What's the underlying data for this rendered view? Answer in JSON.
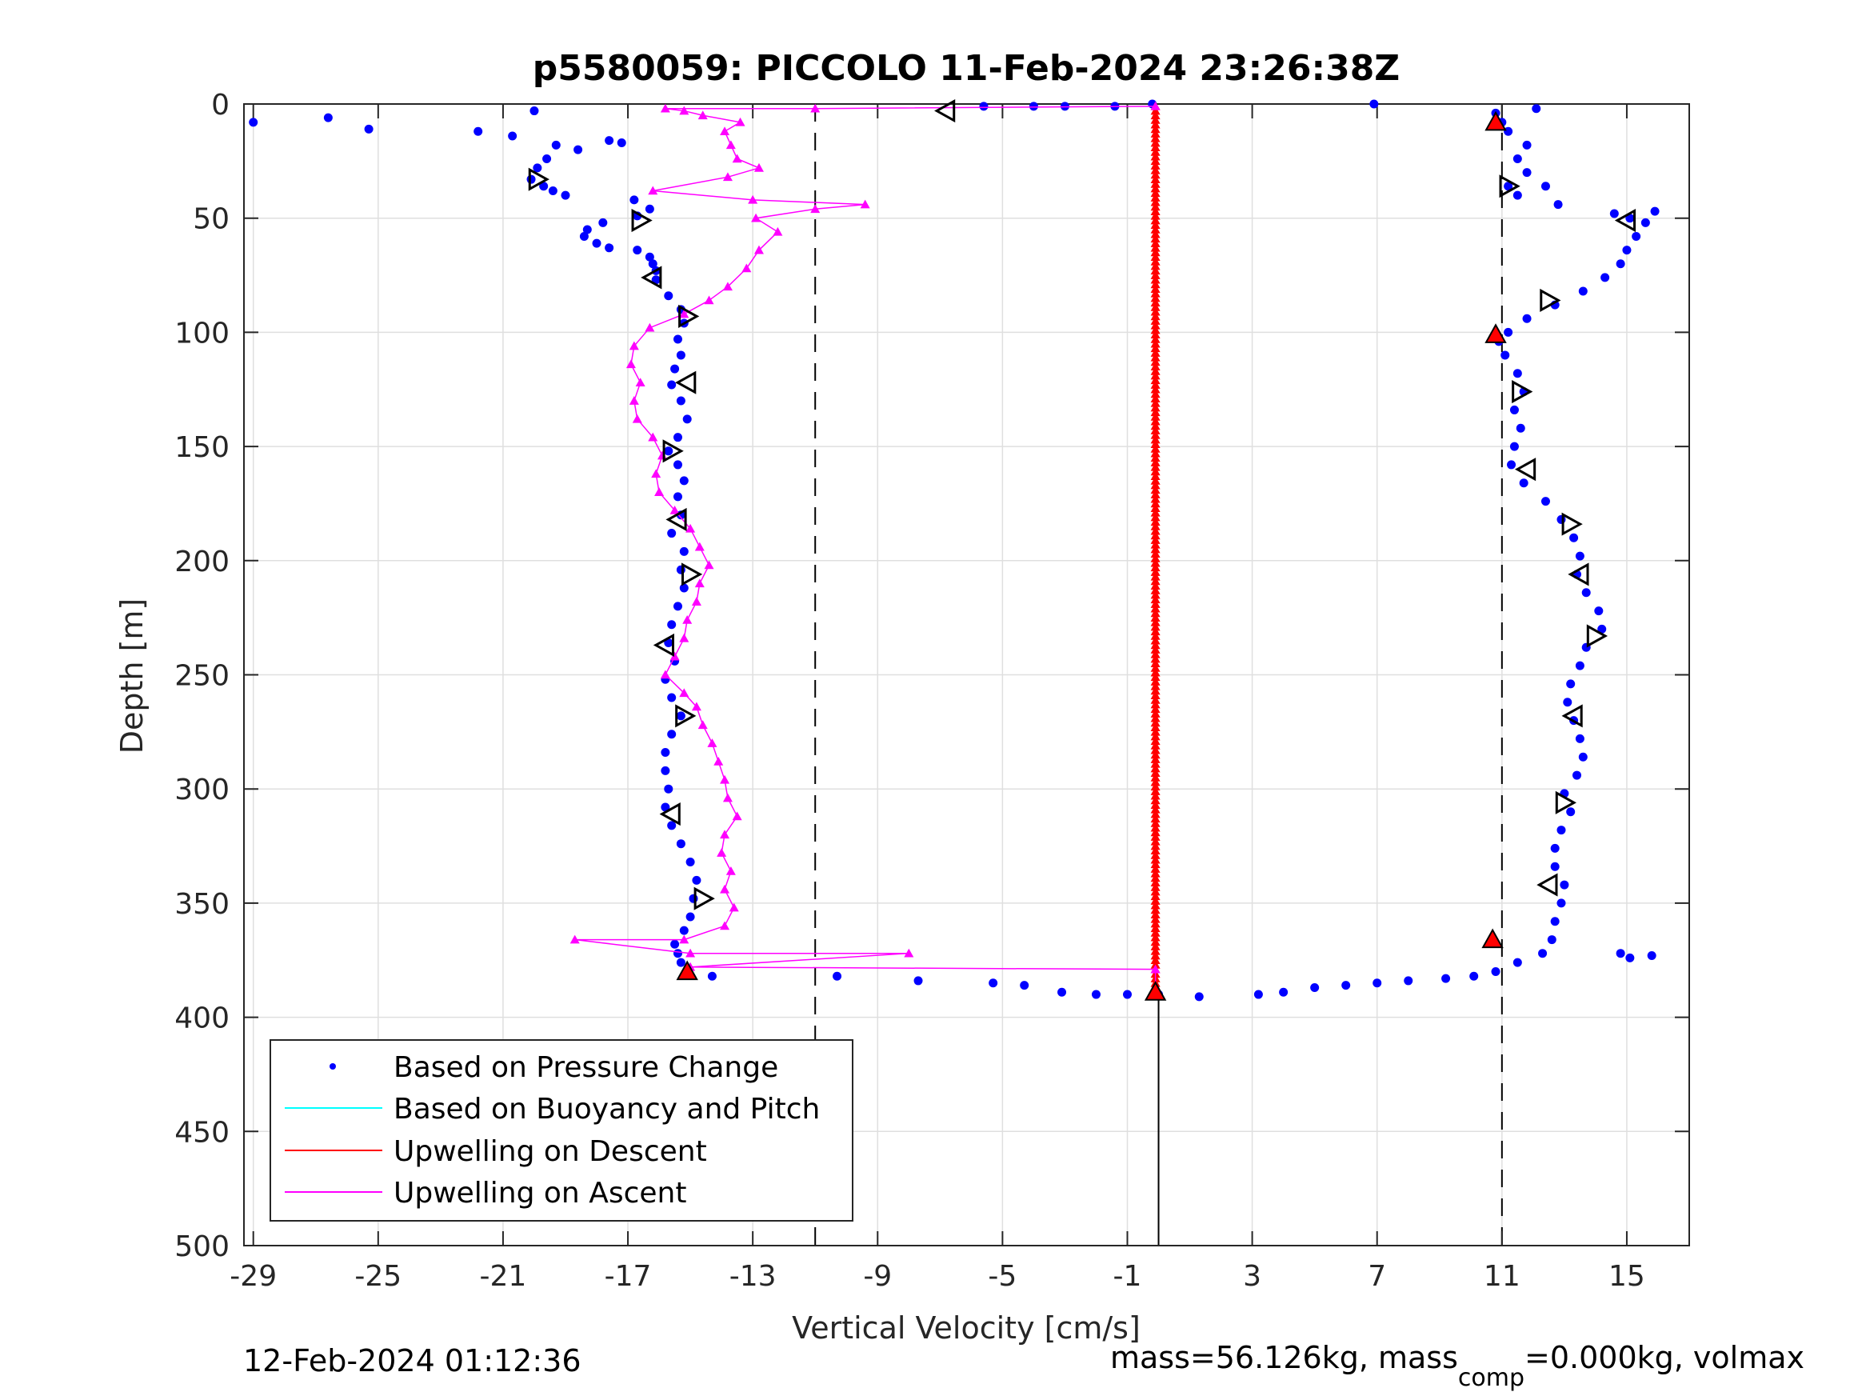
{
  "chart_data": {
    "type": "scatter",
    "title": "p5580059: PICCOLO 11-Feb-2024 23:26:38Z",
    "xlabel": "Vertical Velocity [cm/s]",
    "ylabel": "Depth [m]",
    "xlim": [
      -29.3,
      17
    ],
    "ylim": [
      0,
      500
    ],
    "y_reversed": true,
    "grid": true,
    "xticks": [
      -29,
      -25,
      -21,
      -17,
      -13,
      -9,
      -5,
      -1,
      3,
      7,
      11,
      15
    ],
    "yticks": [
      0,
      50,
      100,
      150,
      200,
      250,
      300,
      350,
      400,
      450,
      500
    ],
    "reference_lines": [
      {
        "name": "dashed-left",
        "x": -11,
        "style": "dashed"
      },
      {
        "name": "dashed-right",
        "x": 11,
        "style": "dashed"
      },
      {
        "name": "zero-line",
        "x": 0,
        "style": "solid",
        "y_from": 390,
        "y_to": 500
      }
    ],
    "legend": {
      "position": "bottom-left",
      "entries": [
        {
          "label": "Based on Pressure Change",
          "color": "#0000ff",
          "marker": "dot"
        },
        {
          "label": "Based on Buoyancy and Pitch",
          "color": "#00ffff",
          "marker": "line"
        },
        {
          "label": "Upwelling on Descent",
          "color": "#ff0000",
          "marker": "line"
        },
        {
          "label": "Upwelling on Ascent",
          "color": "#ff00ff",
          "marker": "line"
        }
      ]
    },
    "series": [
      {
        "name": "Based on Pressure Change (descent)",
        "color": "#0000ff",
        "marker": "dot",
        "points": [
          [
            -29,
            8
          ],
          [
            -26.6,
            6
          ],
          [
            -25.3,
            11
          ],
          [
            -21.8,
            12
          ],
          [
            -20.7,
            14
          ],
          [
            -20,
            3
          ],
          [
            -19.3,
            18
          ],
          [
            -18.6,
            20
          ],
          [
            -17.6,
            16
          ],
          [
            -17.2,
            17
          ],
          [
            -19.6,
            24
          ],
          [
            -19.9,
            28
          ],
          [
            -20.1,
            33
          ],
          [
            -19.7,
            36
          ],
          [
            -19.4,
            38
          ],
          [
            -19,
            40
          ],
          [
            -16.8,
            42
          ],
          [
            -16.3,
            46
          ],
          [
            -16.7,
            49
          ],
          [
            -17.8,
            52
          ],
          [
            -18.3,
            55
          ],
          [
            -18.4,
            58
          ],
          [
            -18,
            61
          ],
          [
            -17.6,
            63
          ],
          [
            -16.7,
            64
          ],
          [
            -16.3,
            67
          ],
          [
            -16.2,
            70
          ],
          [
            -16.1,
            73
          ],
          [
            -16.1,
            77
          ],
          [
            -15.7,
            84
          ],
          [
            -15.3,
            90
          ],
          [
            -15.2,
            96
          ],
          [
            -15.4,
            103
          ],
          [
            -15.3,
            110
          ],
          [
            -15.5,
            116
          ],
          [
            -15.6,
            123
          ],
          [
            -15.3,
            130
          ],
          [
            -15.1,
            138
          ],
          [
            -15.4,
            146
          ],
          [
            -15.7,
            152
          ],
          [
            -15.4,
            158
          ],
          [
            -15.2,
            165
          ],
          [
            -15.4,
            172
          ],
          [
            -15.3,
            180
          ],
          [
            -15.6,
            188
          ],
          [
            -15.2,
            196
          ],
          [
            -15.3,
            204
          ],
          [
            -15.2,
            212
          ],
          [
            -15.4,
            220
          ],
          [
            -15.6,
            228
          ],
          [
            -15.7,
            236
          ],
          [
            -15.5,
            244
          ],
          [
            -15.8,
            252
          ],
          [
            -15.6,
            260
          ],
          [
            -15.3,
            268
          ],
          [
            -15.6,
            276
          ],
          [
            -15.8,
            284
          ],
          [
            -15.8,
            292
          ],
          [
            -15.7,
            300
          ],
          [
            -15.8,
            308
          ],
          [
            -15.6,
            316
          ],
          [
            -15.3,
            324
          ],
          [
            -15,
            332
          ],
          [
            -14.8,
            340
          ],
          [
            -14.9,
            348
          ],
          [
            -15,
            356
          ],
          [
            -15.2,
            362
          ],
          [
            -15.5,
            368
          ],
          [
            -15.4,
            372
          ],
          [
            -15.3,
            376
          ],
          [
            -15.1,
            380
          ],
          [
            -14.3,
            382
          ],
          [
            -10.3,
            382
          ],
          [
            -7.7,
            384
          ],
          [
            -5.3,
            385
          ],
          [
            -4.3,
            386
          ],
          [
            -3.1,
            389
          ],
          [
            -2,
            390
          ],
          [
            -1,
            390
          ],
          [
            0,
            390
          ],
          [
            1.3,
            391
          ]
        ]
      },
      {
        "name": "Based on Pressure Change (ascent)",
        "color": "#0000ff",
        "marker": "dot",
        "points": [
          [
            3.2,
            390
          ],
          [
            4,
            389
          ],
          [
            5,
            387
          ],
          [
            6,
            386
          ],
          [
            7,
            385
          ],
          [
            8,
            384
          ],
          [
            9.2,
            383
          ],
          [
            10.1,
            382
          ],
          [
            10.8,
            380
          ],
          [
            11.5,
            376
          ],
          [
            12.3,
            372
          ],
          [
            12.6,
            366
          ],
          [
            12.7,
            358
          ],
          [
            12.9,
            350
          ],
          [
            13,
            342
          ],
          [
            12.7,
            334
          ],
          [
            12.7,
            326
          ],
          [
            12.9,
            318
          ],
          [
            13.2,
            310
          ],
          [
            13,
            302
          ],
          [
            13.4,
            294
          ],
          [
            13.6,
            286
          ],
          [
            13.5,
            278
          ],
          [
            13.3,
            270
          ],
          [
            13.1,
            262
          ],
          [
            13.2,
            254
          ],
          [
            13.5,
            246
          ],
          [
            13.7,
            238
          ],
          [
            14.2,
            230
          ],
          [
            14.1,
            222
          ],
          [
            13.7,
            214
          ],
          [
            13.4,
            206
          ],
          [
            13.5,
            198
          ],
          [
            13.3,
            190
          ],
          [
            12.9,
            182
          ],
          [
            12.4,
            174
          ],
          [
            11.7,
            166
          ],
          [
            11.3,
            158
          ],
          [
            11.4,
            150
          ],
          [
            11.6,
            142
          ],
          [
            11.4,
            134
          ],
          [
            11.7,
            126
          ],
          [
            11.5,
            118
          ],
          [
            11.1,
            110
          ],
          [
            10.9,
            104
          ],
          [
            11.2,
            100
          ],
          [
            11.8,
            94
          ],
          [
            12.7,
            88
          ],
          [
            13.6,
            82
          ],
          [
            14.3,
            76
          ],
          [
            14.8,
            70
          ],
          [
            15,
            64
          ],
          [
            15.3,
            58
          ],
          [
            15.6,
            52
          ],
          [
            15.9,
            47
          ],
          [
            15.1,
            50
          ],
          [
            14.6,
            48
          ],
          [
            12.8,
            44
          ],
          [
            11.5,
            40
          ],
          [
            12.4,
            36
          ],
          [
            11.2,
            36
          ],
          [
            11.8,
            30
          ],
          [
            11.5,
            24
          ],
          [
            11.8,
            18
          ],
          [
            11.2,
            12
          ],
          [
            11,
            8
          ],
          [
            10.8,
            4
          ],
          [
            12.1,
            2
          ],
          [
            6.9,
            0
          ],
          [
            -0.2,
            0
          ],
          [
            -1.4,
            1
          ],
          [
            -3,
            1
          ],
          [
            -4,
            1
          ],
          [
            -5.6,
            1
          ],
          [
            15.8,
            373
          ],
          [
            15.1,
            374
          ],
          [
            14.8,
            372
          ]
        ]
      },
      {
        "name": "Upwelling on Descent",
        "color": "#ff0000",
        "marker": "triangle-line",
        "x_constant": -0.1,
        "y_range": [
          1,
          390
        ]
      },
      {
        "name": "Upwelling on Ascent",
        "color": "#ff00ff",
        "marker": "triangle-line",
        "points": [
          [
            -0.1,
            390
          ],
          [
            -0.1,
            379
          ],
          [
            -15,
            378
          ],
          [
            -8,
            372
          ],
          [
            -15,
            372
          ],
          [
            -18.7,
            366
          ],
          [
            -15.2,
            366
          ],
          [
            -13.9,
            360
          ],
          [
            -13.6,
            352
          ],
          [
            -13.9,
            344
          ],
          [
            -13.7,
            336
          ],
          [
            -14,
            328
          ],
          [
            -13.9,
            320
          ],
          [
            -13.5,
            312
          ],
          [
            -13.8,
            304
          ],
          [
            -13.9,
            296
          ],
          [
            -14.1,
            288
          ],
          [
            -14.3,
            280
          ],
          [
            -14.6,
            272
          ],
          [
            -14.8,
            264
          ],
          [
            -15.2,
            258
          ],
          [
            -15.8,
            250
          ],
          [
            -15.5,
            242
          ],
          [
            -15.2,
            234
          ],
          [
            -15.1,
            226
          ],
          [
            -14.8,
            218
          ],
          [
            -14.7,
            210
          ],
          [
            -14.4,
            202
          ],
          [
            -14.7,
            194
          ],
          [
            -15,
            186
          ],
          [
            -15.5,
            178
          ],
          [
            -16,
            170
          ],
          [
            -16.1,
            162
          ],
          [
            -15.9,
            154
          ],
          [
            -16.2,
            146
          ],
          [
            -16.7,
            138
          ],
          [
            -16.8,
            130
          ],
          [
            -16.6,
            122
          ],
          [
            -16.9,
            114
          ],
          [
            -16.8,
            106
          ],
          [
            -16.3,
            98
          ],
          [
            -15.2,
            92
          ],
          [
            -14.4,
            86
          ],
          [
            -13.8,
            80
          ],
          [
            -13.2,
            72
          ],
          [
            -12.8,
            64
          ],
          [
            -12.2,
            56
          ],
          [
            -12.9,
            50
          ],
          [
            -11,
            46
          ],
          [
            -9.4,
            44
          ],
          [
            -13,
            42
          ],
          [
            -16.2,
            38
          ],
          [
            -13.8,
            32
          ],
          [
            -12.8,
            28
          ],
          [
            -13.5,
            24
          ],
          [
            -13.7,
            18
          ],
          [
            -13.9,
            12
          ],
          [
            -13.4,
            8
          ],
          [
            -14.6,
            5
          ],
          [
            -15.2,
            3
          ],
          [
            -15.8,
            2
          ],
          [
            -11,
            2
          ],
          [
            -0.1,
            1
          ]
        ]
      },
      {
        "name": "Start markers",
        "color": "#ff0000",
        "marker": "red-triangle",
        "points": [
          [
            10.8,
            8
          ],
          [
            10.8,
            101
          ],
          [
            10.7,
            366
          ],
          [
            -15.1,
            380
          ],
          [
            -0.1,
            389
          ]
        ]
      },
      {
        "name": "Direction markers",
        "color": "#000000",
        "marker": "open-triangle",
        "points": [
          [
            -6.8,
            3,
            "left"
          ],
          [
            -19.9,
            33,
            "right"
          ],
          [
            -16.6,
            51,
            "right"
          ],
          [
            -16.2,
            76,
            "left"
          ],
          [
            -15.1,
            93,
            "right"
          ],
          [
            -15.1,
            122,
            "left"
          ],
          [
            -15.6,
            152,
            "right"
          ],
          [
            -15.4,
            182,
            "left"
          ],
          [
            -15,
            206,
            "right"
          ],
          [
            -15.8,
            237,
            "left"
          ],
          [
            -15.2,
            268,
            "right"
          ],
          [
            -15.6,
            311,
            "left"
          ],
          [
            -14.6,
            348,
            "right"
          ],
          [
            11.2,
            36,
            "right"
          ],
          [
            15,
            51,
            "left"
          ],
          [
            12.5,
            86,
            "right"
          ],
          [
            11.6,
            126,
            "right"
          ],
          [
            11.8,
            160,
            "left"
          ],
          [
            13.2,
            184,
            "right"
          ],
          [
            13.5,
            206,
            "left"
          ],
          [
            14,
            233,
            "right"
          ],
          [
            13.3,
            268,
            "left"
          ],
          [
            13,
            306,
            "right"
          ],
          [
            12.5,
            342,
            "left"
          ]
        ]
      }
    ]
  },
  "footer": {
    "timestamp": "12-Feb-2024 01:12:36",
    "mass_text_a": "mass=56.126kg, mass",
    "mass_sub": "comp",
    "mass_text_b": "=0.000kg, volmax"
  }
}
